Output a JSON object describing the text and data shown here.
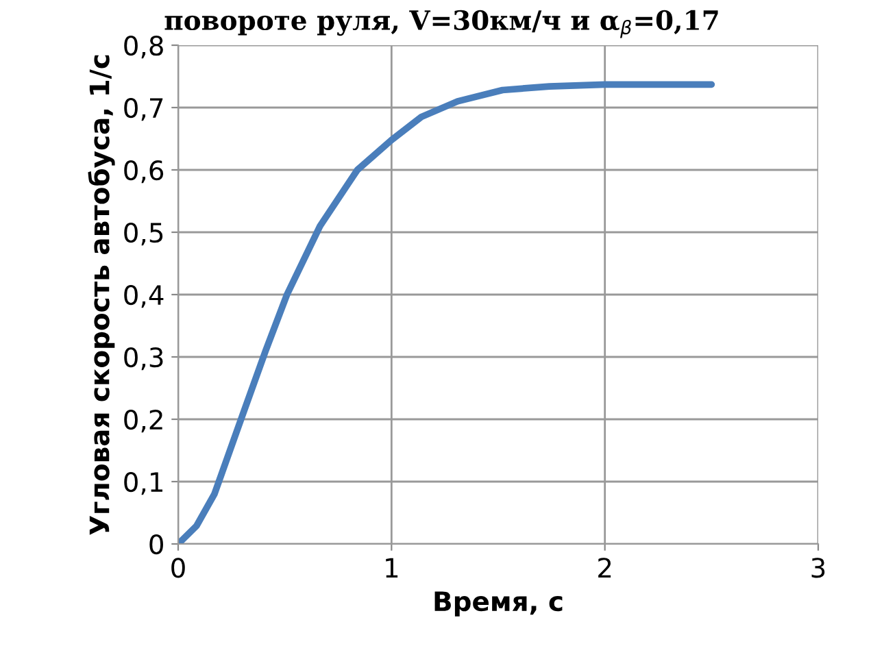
{
  "chart_data": {
    "type": "line",
    "title": "повороте руля, V=30км/ч и α$_{β}$=0,17",
    "xlabel": "Время, с",
    "ylabel": "Угловая скорость автобуса, 1/с",
    "series": [
      {
        "color": "#4a7ebb",
        "x": [
          0,
          0.086,
          0.17,
          0.3,
          0.41,
          0.51,
          0.665,
          0.84,
          1.0,
          1.14,
          1.31,
          1.52,
          1.74,
          2.0,
          2.5
        ],
        "values": [
          0,
          0.029,
          0.08,
          0.205,
          0.31,
          0.4,
          0.51,
          0.6,
          0.648,
          0.685,
          0.71,
          0.728,
          0.734,
          0.737,
          0.737
        ]
      }
    ],
    "xlim": [
      0,
      3
    ],
    "xticks": [
      0,
      1,
      2,
      3
    ],
    "ylim": [
      0,
      0.8
    ],
    "yticks": [
      0,
      {
        "value": 0.1,
        "label": "0,1"
      },
      {
        "value": 0.2,
        "label": "0,2"
      },
      {
        "value": 0.3,
        "label": "0,3"
      },
      {
        "value": 0.4,
        "label": "0,4"
      },
      {
        "value": 0.5,
        "label": "0,5"
      },
      {
        "value": 0.6,
        "label": "0,6"
      },
      {
        "value": 0.7,
        "label": "0,7"
      },
      {
        "value": 0.8,
        "label": "0,8"
      }
    ],
    "grid": true,
    "legend": false,
    "marker": "none",
    "line_style": "solid"
  }
}
